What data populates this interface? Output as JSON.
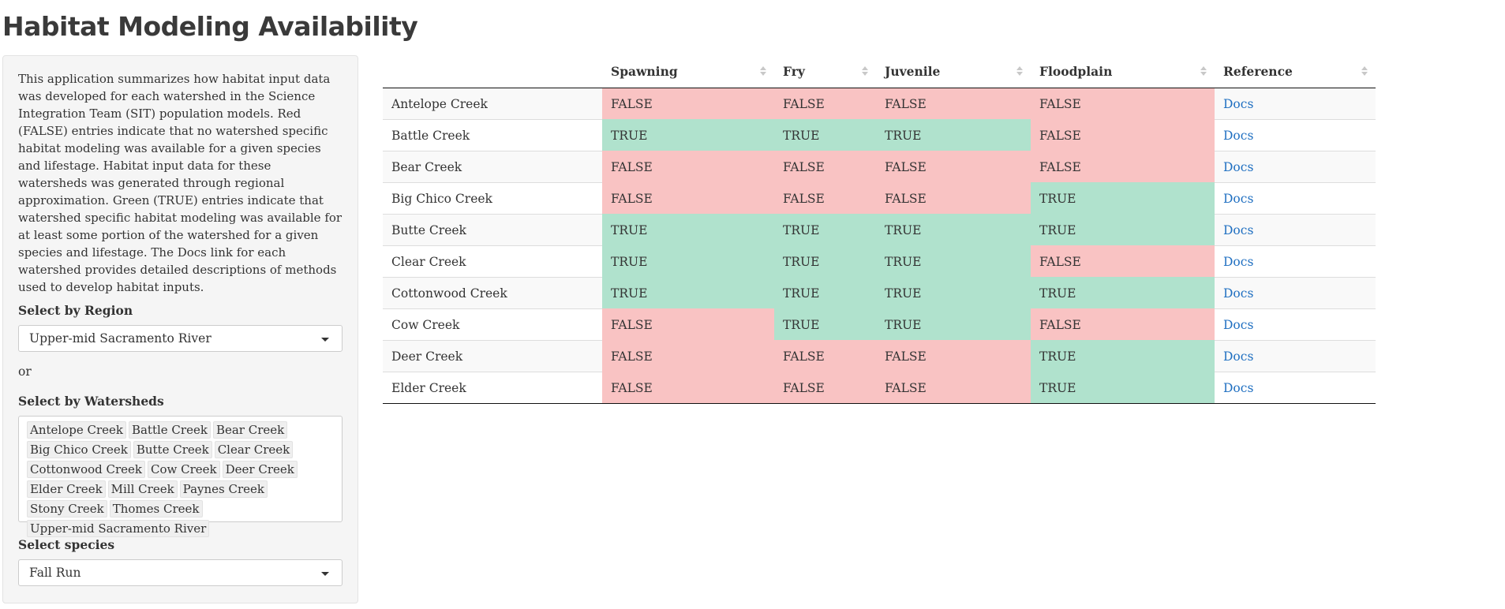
{
  "title": "Habitat Modeling Availability",
  "sidebar": {
    "description": "This application summarizes how habitat input data was developed for each watershed in the Science Integration Team (SIT) population models. Red (FALSE) entries indicate that no watershed specific habitat modeling was available for a given species and lifestage. Habitat input data for these watersheds was generated through regional approximation. Green (TRUE) entries indicate that watershed specific habitat modeling was available for at least some portion of the watershed for a given species and lifestage. The Docs link for each watershed provides detailed descriptions of methods used to develop habitat inputs.",
    "region_label": "Select by Region",
    "region_value": "Upper-mid Sacramento River",
    "or_text": "or",
    "watersheds_label": "Select by Watersheds",
    "watersheds": [
      "Antelope Creek",
      "Battle Creek",
      "Bear Creek",
      "Big Chico Creek",
      "Butte Creek",
      "Clear Creek",
      "Cottonwood Creek",
      "Cow Creek",
      "Deer Creek",
      "Elder Creek",
      "Mill Creek",
      "Paynes Creek",
      "Stony Creek",
      "Thomes Creek",
      "Upper-mid Sacramento River"
    ],
    "species_label": "Select species",
    "species_value": "Fall Run"
  },
  "table": {
    "columns": [
      "",
      "Spawning",
      "Fry",
      "Juvenile",
      "Floodplain",
      "Reference"
    ],
    "rows": [
      {
        "watershed": "Antelope Creek",
        "spawning": "FALSE",
        "fry": "FALSE",
        "juvenile": "FALSE",
        "floodplain": "FALSE",
        "reference": "Docs"
      },
      {
        "watershed": "Battle Creek",
        "spawning": "TRUE",
        "fry": "TRUE",
        "juvenile": "TRUE",
        "floodplain": "FALSE",
        "reference": "Docs"
      },
      {
        "watershed": "Bear Creek",
        "spawning": "FALSE",
        "fry": "FALSE",
        "juvenile": "FALSE",
        "floodplain": "FALSE",
        "reference": "Docs"
      },
      {
        "watershed": "Big Chico Creek",
        "spawning": "FALSE",
        "fry": "FALSE",
        "juvenile": "FALSE",
        "floodplain": "TRUE",
        "reference": "Docs"
      },
      {
        "watershed": "Butte Creek",
        "spawning": "TRUE",
        "fry": "TRUE",
        "juvenile": "TRUE",
        "floodplain": "TRUE",
        "reference": "Docs"
      },
      {
        "watershed": "Clear Creek",
        "spawning": "TRUE",
        "fry": "TRUE",
        "juvenile": "TRUE",
        "floodplain": "FALSE",
        "reference": "Docs"
      },
      {
        "watershed": "Cottonwood Creek",
        "spawning": "TRUE",
        "fry": "TRUE",
        "juvenile": "TRUE",
        "floodplain": "TRUE",
        "reference": "Docs"
      },
      {
        "watershed": "Cow Creek",
        "spawning": "FALSE",
        "fry": "TRUE",
        "juvenile": "TRUE",
        "floodplain": "FALSE",
        "reference": "Docs"
      },
      {
        "watershed": "Deer Creek",
        "spawning": "FALSE",
        "fry": "FALSE",
        "juvenile": "FALSE",
        "floodplain": "TRUE",
        "reference": "Docs"
      },
      {
        "watershed": "Elder Creek",
        "spawning": "FALSE",
        "fry": "FALSE",
        "juvenile": "FALSE",
        "floodplain": "TRUE",
        "reference": "Docs"
      }
    ]
  },
  "colors": {
    "true_fill": "#b0e2cd",
    "false_fill": "#f9c3c3",
    "link": "#1f6fc1"
  },
  "icons": {
    "select_caret": "caret-down-icon",
    "sort": "sort-icon"
  }
}
